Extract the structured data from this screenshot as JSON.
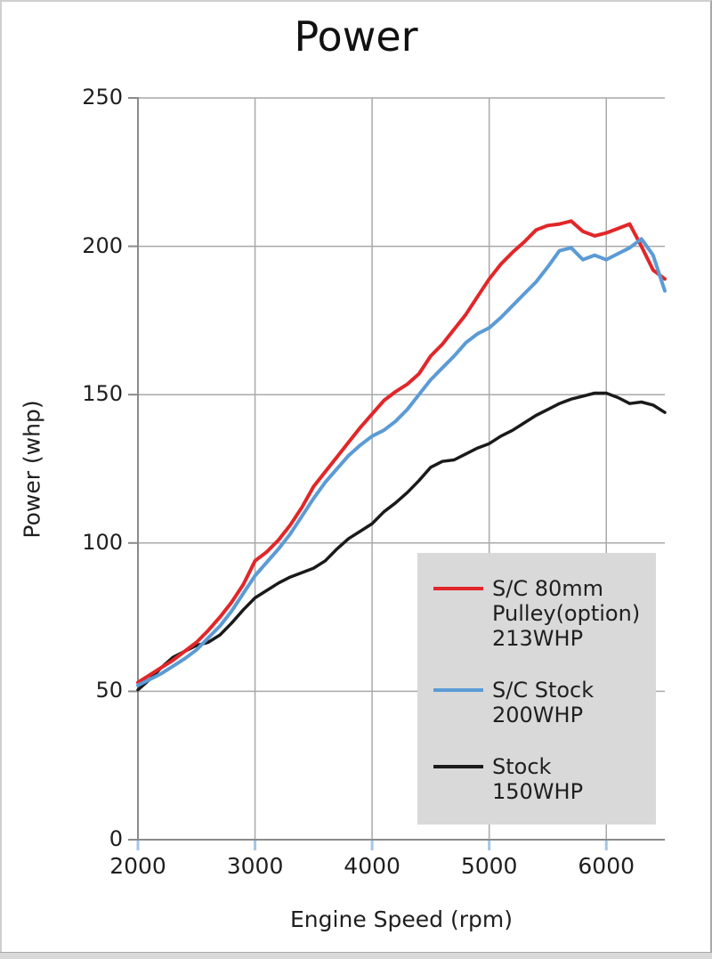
{
  "page": {
    "title": "Power"
  },
  "chart_data": {
    "type": "line",
    "title": "Power",
    "xlabel": "Engine Speed (rpm)",
    "ylabel": "Power (whp)",
    "xlim": [
      2000,
      6500
    ],
    "ylim": [
      0,
      250
    ],
    "x_ticks": [
      2000,
      3000,
      4000,
      5000,
      6000
    ],
    "y_ticks": [
      0,
      50,
      100,
      150,
      200,
      250
    ],
    "grid": true,
    "colors": {
      "grid": "#a9a9a9",
      "axis": "#8a8a8a",
      "x_tick": "#a3c6e8",
      "legend_bg": "#d9d9d9",
      "text": "#1f1f1f"
    },
    "x": [
      2000,
      2100,
      2200,
      2300,
      2400,
      2500,
      2600,
      2700,
      2800,
      2900,
      3000,
      3100,
      3200,
      3300,
      3400,
      3500,
      3600,
      3700,
      3800,
      3900,
      4000,
      4100,
      4200,
      4300,
      4400,
      4500,
      4600,
      4700,
      4800,
      4900,
      5000,
      5100,
      5200,
      5300,
      5400,
      5500,
      5600,
      5700,
      5800,
      5900,
      6000,
      6100,
      6200,
      6300,
      6400,
      6500
    ],
    "series": [
      {
        "name": "S/C 80mm Pulley(option) 213WHP",
        "color": "#e22629",
        "width": 4,
        "values": [
          53,
          55.5,
          58,
          60.5,
          63.5,
          66.5,
          70.5,
          75,
          80,
          86,
          94,
          97,
          101,
          106,
          112,
          119,
          124,
          129,
          134,
          139,
          143.5,
          148,
          151,
          153.5,
          157,
          163,
          167,
          172,
          177,
          183,
          189,
          194,
          198,
          201.5,
          205.5,
          207,
          207.5,
          208.5,
          205,
          203.5,
          204.5,
          206,
          207.5,
          200,
          192,
          189
        ]
      },
      {
        "name": "S/C Stock 200WHP",
        "color": "#5b9bd5",
        "width": 4,
        "values": [
          52,
          54,
          56,
          58.5,
          61,
          64,
          68,
          72,
          77,
          83,
          89,
          93.5,
          98,
          103,
          109,
          115,
          120.5,
          125,
          129.5,
          133,
          136,
          138,
          141,
          145,
          150,
          155,
          159,
          163,
          167.5,
          170.5,
          172.5,
          176,
          180,
          184,
          188,
          193,
          198.5,
          199.5,
          195.5,
          197,
          195.5,
          197.5,
          199.5,
          202.5,
          197,
          185
        ]
      },
      {
        "name": "Stock 150WHP",
        "color": "#1a1a1a",
        "width": 3.5,
        "values": [
          50.5,
          54,
          58,
          61.5,
          63.5,
          65.5,
          66.5,
          69,
          73,
          77.5,
          81.5,
          84,
          86.5,
          88.5,
          90,
          91.5,
          94,
          98,
          101.5,
          104,
          106.5,
          110.5,
          113.5,
          117,
          121,
          125.5,
          127.5,
          128,
          130,
          132,
          133.5,
          136,
          138,
          140.5,
          143,
          145,
          147,
          148.5,
          149.5,
          150.5,
          150.5,
          149,
          147,
          147.5,
          146.5,
          144
        ]
      }
    ],
    "draw_order": [
      2,
      0,
      1
    ],
    "legend": {
      "position": "lower right",
      "items": [
        {
          "color": "#e22629",
          "lines": [
            "S/C 80mm",
            "Pulley(option)",
            "213WHP"
          ]
        },
        {
          "color": "#5b9bd5",
          "lines": [
            "S/C Stock",
            "200WHP"
          ]
        },
        {
          "color": "#1a1a1a",
          "lines": [
            "Stock",
            "150WHP"
          ]
        }
      ]
    }
  }
}
